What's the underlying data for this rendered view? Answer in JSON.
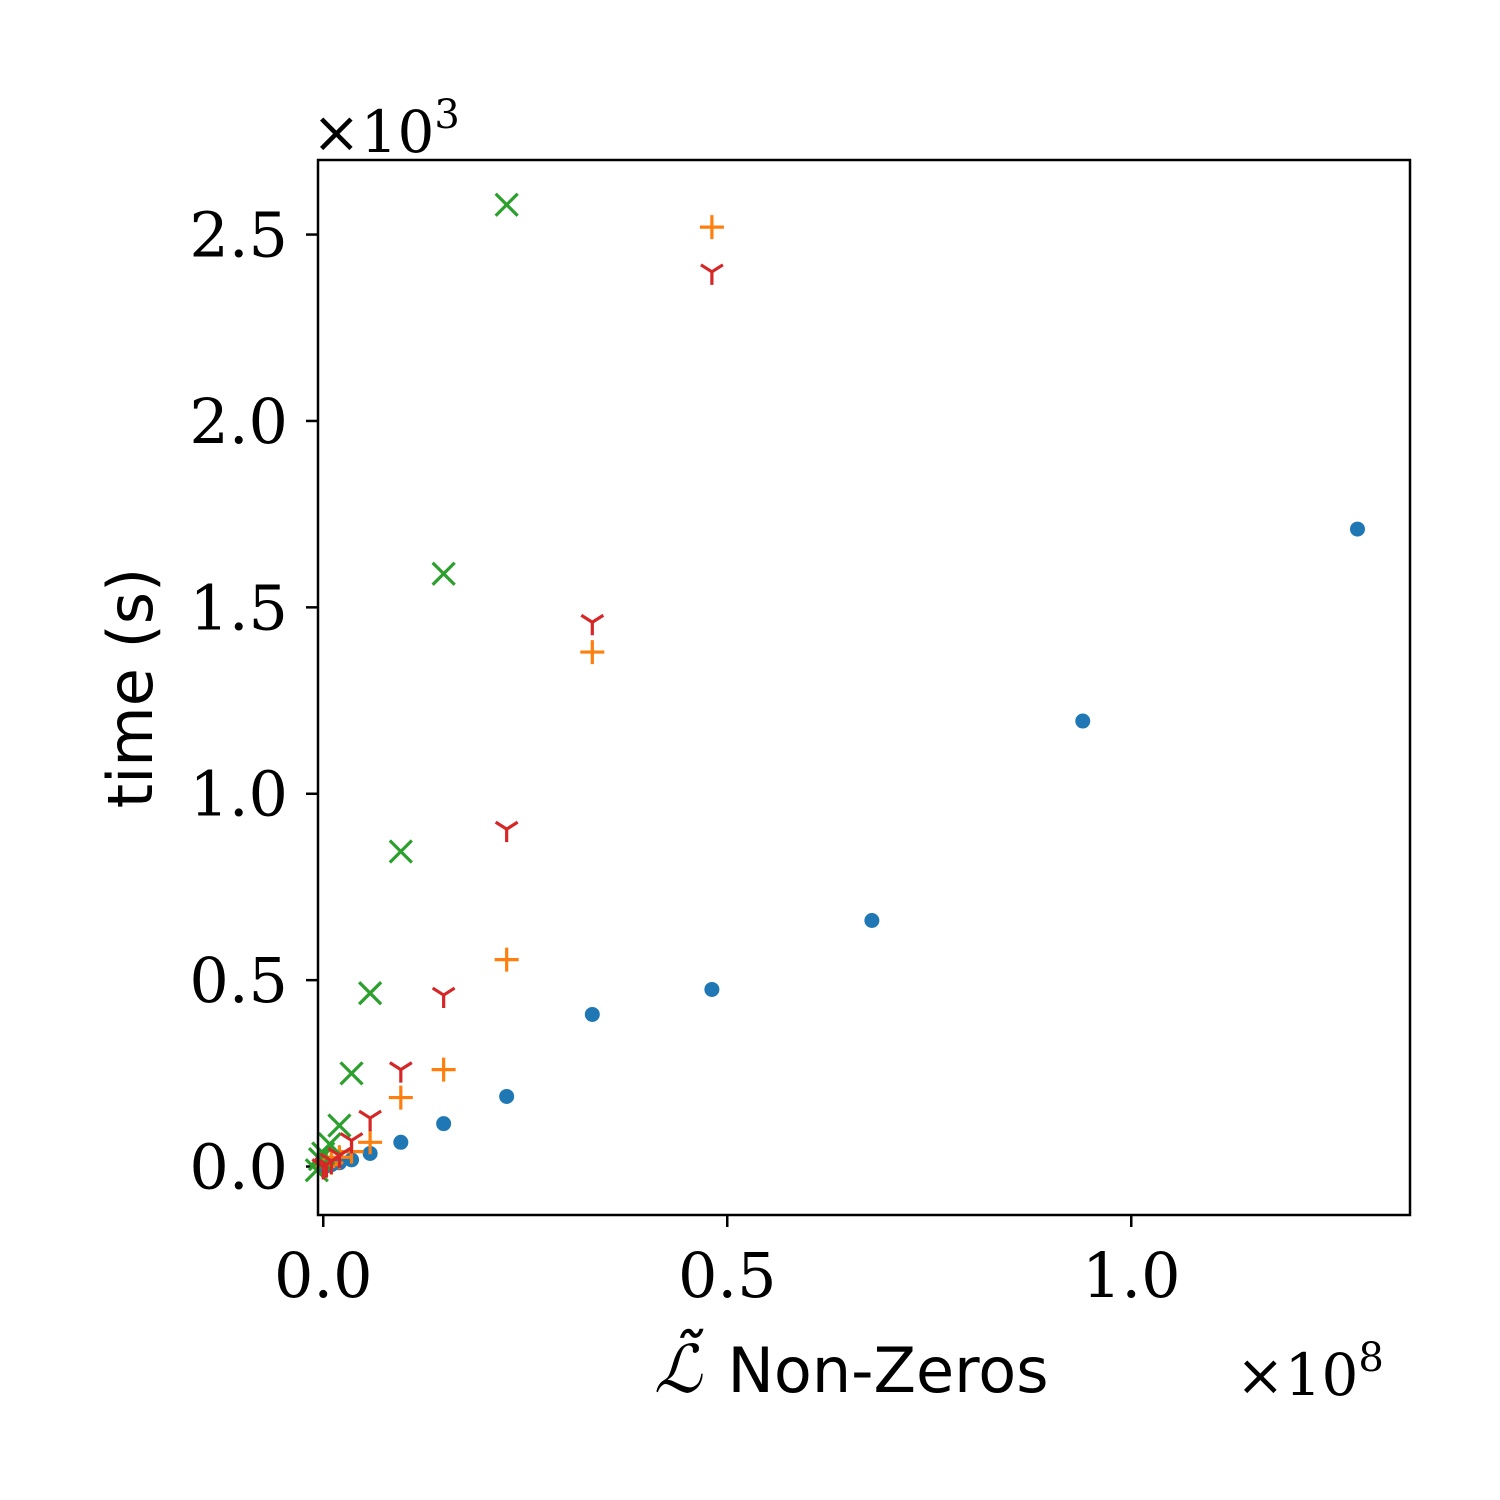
{
  "chart_data": {
    "type": "scatter",
    "xlabel_symbol": "ℒ̃",
    "xlabel": "Non-Zeros",
    "ylabel": "time (s)",
    "x_scale_label": "×10",
    "x_scale_exponent": "8",
    "y_scale_label": "×10",
    "y_scale_exponent": "3",
    "xlim": [
      -0.0065,
      1.345
    ],
    "ylim": [
      -0.13,
      2.7
    ],
    "x_ticks": [
      {
        "value": 0.0,
        "label": "0.0"
      },
      {
        "value": 0.5,
        "label": "0.5"
      },
      {
        "value": 1.0,
        "label": "1.0"
      }
    ],
    "y_ticks": [
      {
        "value": 0.0,
        "label": "0.0"
      },
      {
        "value": 0.5,
        "label": "0.5"
      },
      {
        "value": 1.0,
        "label": "1.0"
      },
      {
        "value": 1.5,
        "label": "1.5"
      },
      {
        "value": 2.0,
        "label": "2.0"
      },
      {
        "value": 2.5,
        "label": "2.5"
      }
    ],
    "grid": false,
    "legend": "none",
    "series": [
      {
        "marker": "circle",
        "color": "#1f77b4",
        "points": [
          {
            "x": 0.0,
            "y": 0.0
          },
          {
            "x": 0.004,
            "y": 0.002
          },
          {
            "x": 0.01,
            "y": 0.005
          },
          {
            "x": 0.02,
            "y": 0.01
          },
          {
            "x": 0.035,
            "y": 0.018
          },
          {
            "x": 0.058,
            "y": 0.035
          },
          {
            "x": 0.096,
            "y": 0.065
          },
          {
            "x": 0.149,
            "y": 0.115
          },
          {
            "x": 0.227,
            "y": 0.188
          },
          {
            "x": 0.333,
            "y": 0.408
          },
          {
            "x": 0.481,
            "y": 0.475
          },
          {
            "x": 0.679,
            "y": 0.66
          },
          {
            "x": 0.94,
            "y": 1.195
          },
          {
            "x": 1.28,
            "y": 1.71
          }
        ]
      },
      {
        "marker": "plus",
        "color": "#ff7f0e",
        "points": [
          {
            "x": 0.0,
            "y": 0.0
          },
          {
            "x": 0.004,
            "y": 0.005
          },
          {
            "x": 0.01,
            "y": 0.01
          },
          {
            "x": 0.02,
            "y": 0.025
          },
          {
            "x": 0.035,
            "y": 0.04
          },
          {
            "x": 0.058,
            "y": 0.065
          },
          {
            "x": 0.096,
            "y": 0.185
          },
          {
            "x": 0.149,
            "y": 0.26
          },
          {
            "x": 0.227,
            "y": 0.555
          },
          {
            "x": 0.333,
            "y": 1.38
          },
          {
            "x": 0.481,
            "y": 2.52
          }
        ]
      },
      {
        "marker": "cross",
        "color": "#2ca02c",
        "points": [
          {
            "x": -0.008,
            "y": -0.01
          },
          {
            "x": -0.004,
            "y": 0.02
          },
          {
            "x": 0.0,
            "y": 0.035
          },
          {
            "x": 0.008,
            "y": 0.06
          },
          {
            "x": 0.02,
            "y": 0.11
          },
          {
            "x": 0.035,
            "y": 0.25
          },
          {
            "x": 0.058,
            "y": 0.465
          },
          {
            "x": 0.096,
            "y": 0.845
          },
          {
            "x": 0.149,
            "y": 1.59
          },
          {
            "x": 0.227,
            "y": 2.58
          }
        ]
      },
      {
        "marker": "tri_down",
        "color": "#d62728",
        "points": [
          {
            "x": 0.0,
            "y": 0.0
          },
          {
            "x": 0.004,
            "y": 0.005
          },
          {
            "x": 0.01,
            "y": 0.015
          },
          {
            "x": 0.02,
            "y": 0.03
          },
          {
            "x": 0.035,
            "y": 0.07
          },
          {
            "x": 0.058,
            "y": 0.13
          },
          {
            "x": 0.096,
            "y": 0.26
          },
          {
            "x": 0.149,
            "y": 0.46
          },
          {
            "x": 0.227,
            "y": 0.905
          },
          {
            "x": 0.333,
            "y": 1.46
          },
          {
            "x": 0.481,
            "y": 2.4
          }
        ]
      }
    ]
  }
}
